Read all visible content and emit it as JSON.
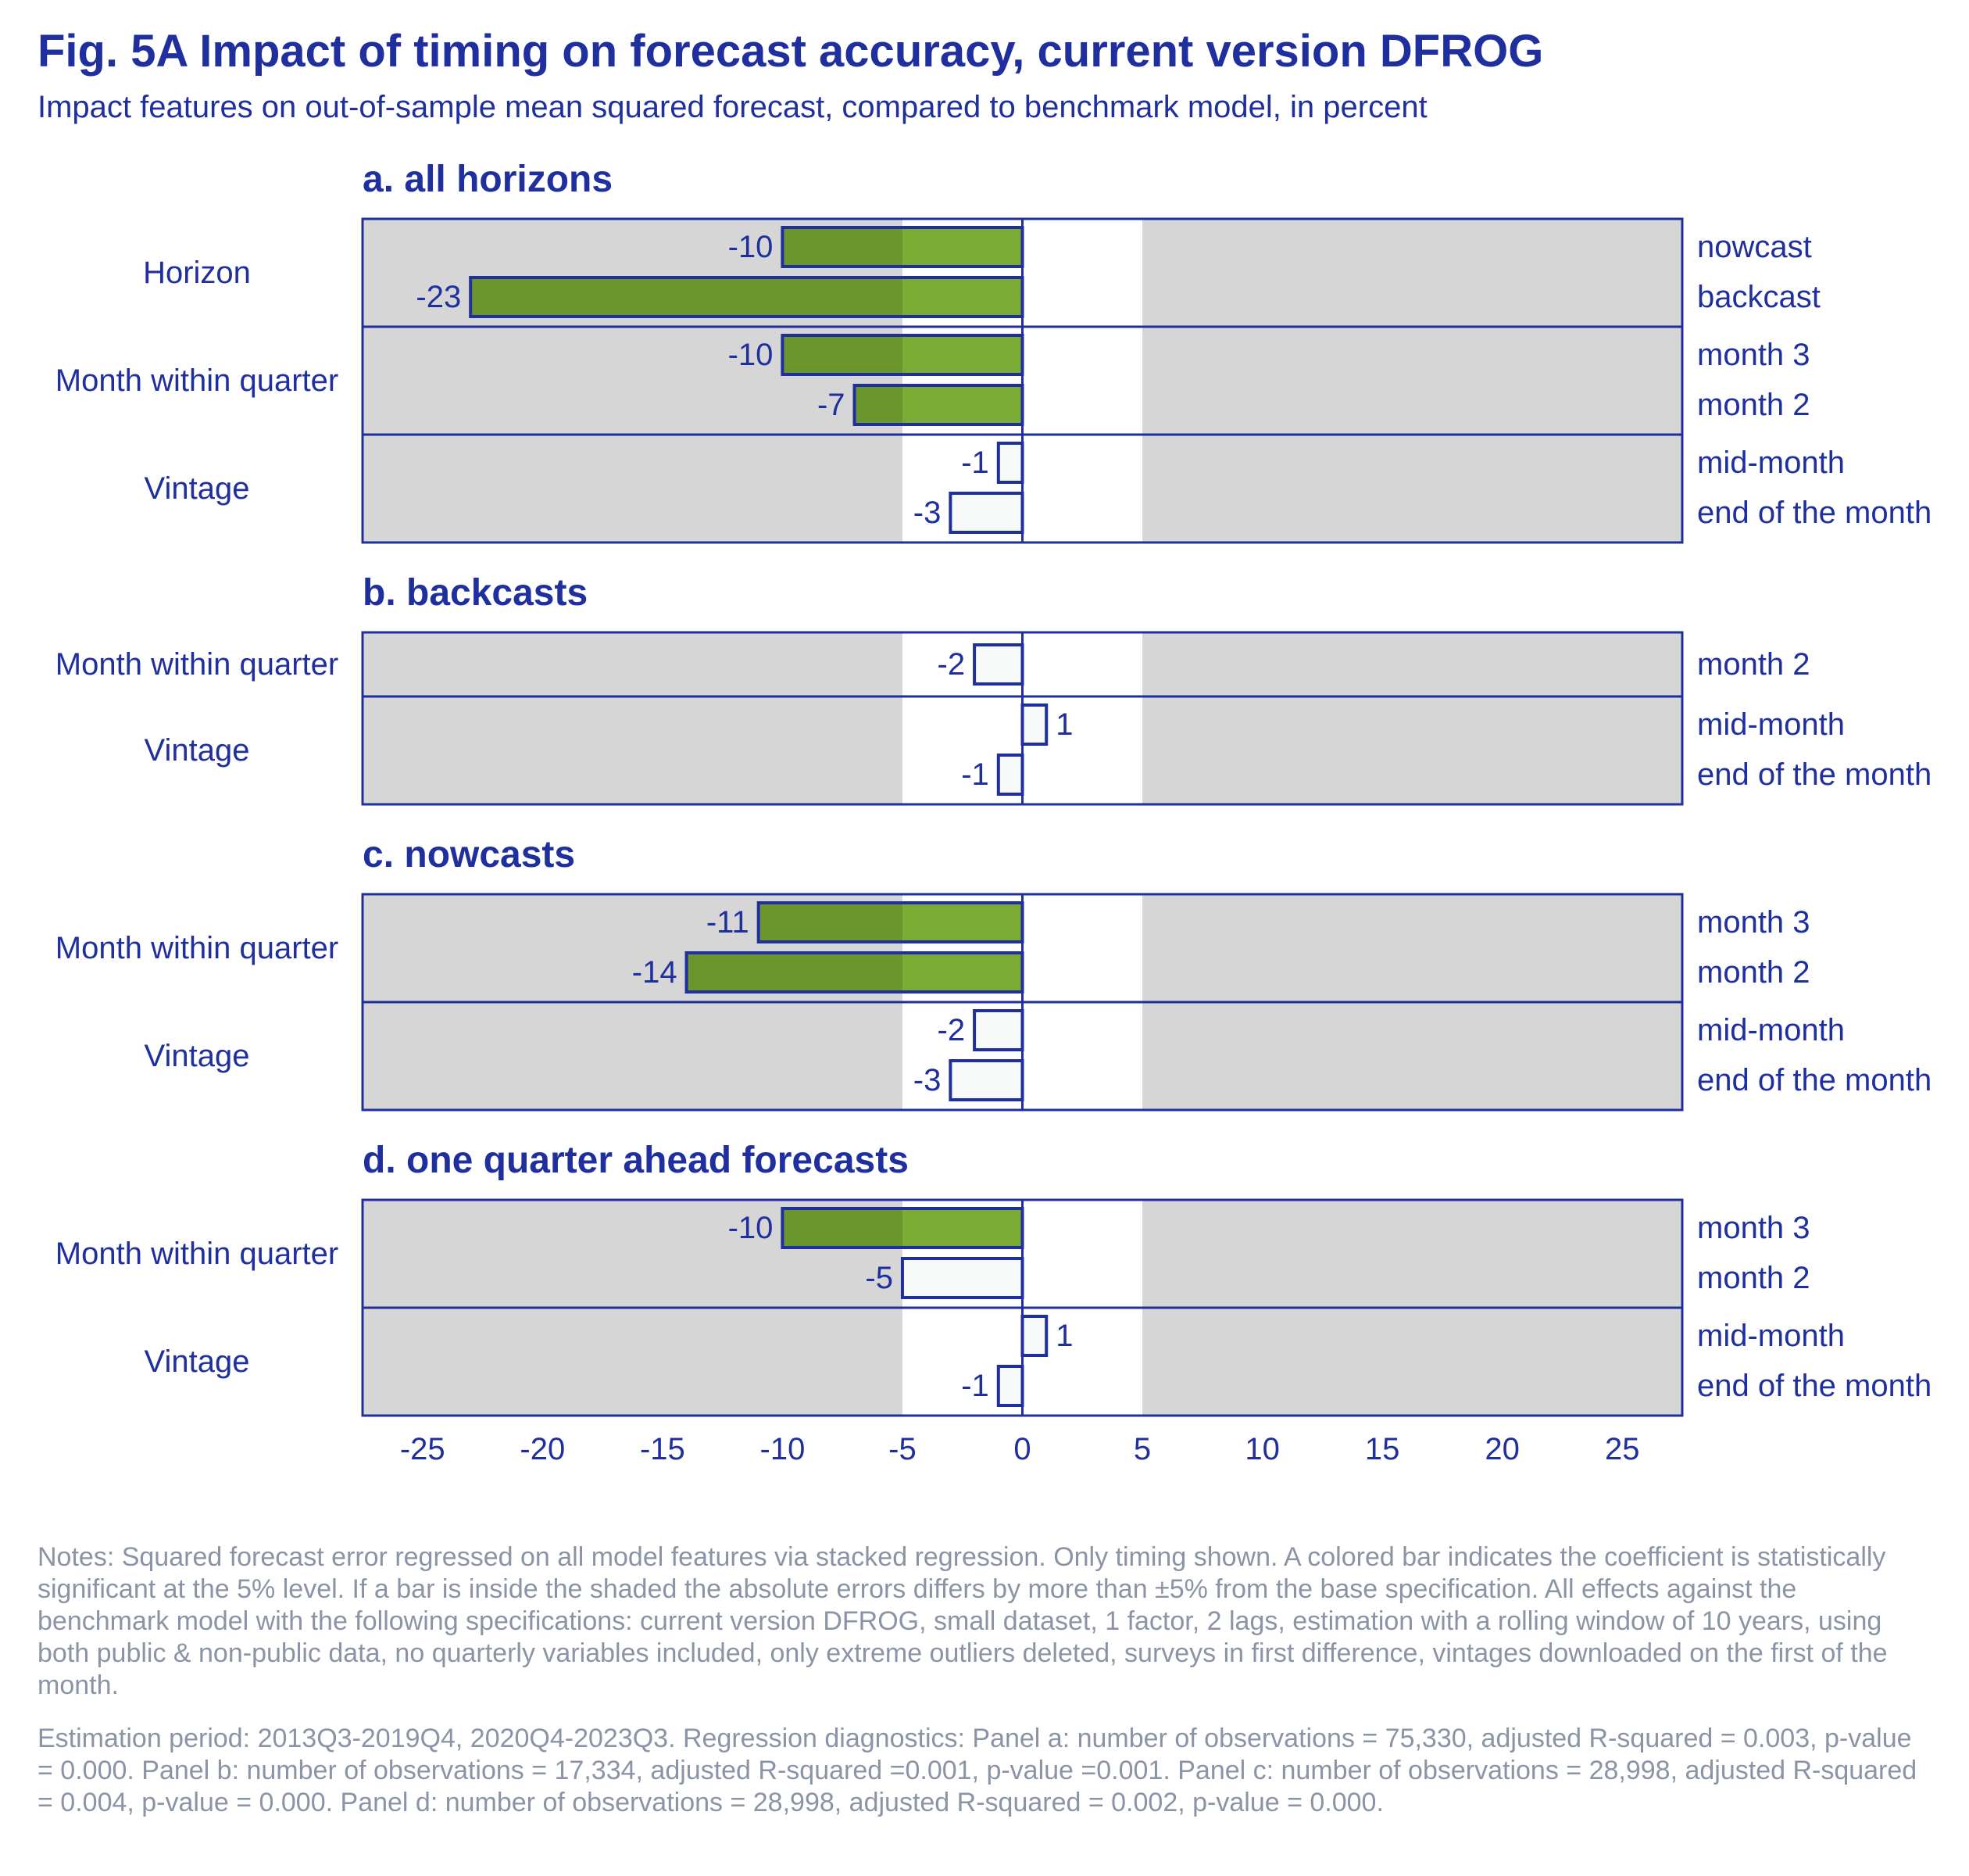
{
  "title": "Fig. 5A Impact of timing on forecast accuracy, current version DFROG",
  "subtitle": "Impact features on out-of-sample mean squared forecast, compared to benchmark model, in percent",
  "notes": "Notes: Squared forecast error regressed on all model features via stacked regression. Only timing shown. A colored bar indicates the coefficient is statistically significant at the 5% level. If a bar is inside the shaded the absolute errors differs by more than ±5% from the base specification. All effects against the benchmark model with the following specifications: current version DFROG, small dataset, 1 factor, 2 lags, estimation with a rolling window of 10 years, using both public & non-public data, no quarterly variables included, only extreme outliers deleted, surveys in first difference, vintages downloaded on the first of the month.",
  "notes_estimation": "Estimation period: 2013Q3-2019Q4, 2020Q4-2023Q3. Regression diagnostics: Panel a: number of observations = 75,330, adjusted R-squared = 0.003, p-value = 0.000. Panel b: number of observations = 17,334, adjusted R-squared =0.001, p-value =0.001. Panel c: number of observations = 28,998, adjusted R-squared = 0.004, p-value = 0.000. Panel d: number of observations = 28,998, adjusted R-squared = 0.002, p-value = 0.000.",
  "colors": {
    "text": "#1f2f9e",
    "outline": "#1f2f9e",
    "shade": "#d6d6d6",
    "significant_bar": "#7aab35",
    "insignificant_bar": "#f7f8f8",
    "notes": "#8a94a6"
  },
  "chart_data": {
    "type": "bar",
    "orientation": "horizontal",
    "xlim": [
      -27.5,
      27.5
    ],
    "xticks": [
      -25,
      -20,
      -15,
      -10,
      -5,
      0,
      5,
      10,
      15,
      20,
      25
    ],
    "unshaded_band": [
      -5,
      5
    ],
    "panels": [
      {
        "title": "a. all horizons",
        "groups": [
          {
            "label": "Horizon",
            "bars": [
              {
                "category": "nowcast",
                "value": -10,
                "significant": true
              },
              {
                "category": "backcast",
                "value": -23,
                "significant": true
              }
            ]
          },
          {
            "label": "Month within quarter",
            "bars": [
              {
                "category": "month 3",
                "value": -10,
                "significant": true
              },
              {
                "category": "month 2",
                "value": -7,
                "significant": true
              }
            ]
          },
          {
            "label": "Vintage",
            "bars": [
              {
                "category": "mid-month",
                "value": -1,
                "significant": false
              },
              {
                "category": "end of the month",
                "value": -3,
                "significant": false
              }
            ]
          }
        ]
      },
      {
        "title": "b. backcasts",
        "groups": [
          {
            "label": "Month within quarter",
            "bars": [
              {
                "category": "month 2",
                "value": -2,
                "significant": false
              }
            ]
          },
          {
            "label": "Vintage",
            "bars": [
              {
                "category": "mid-month",
                "value": 1,
                "significant": false
              },
              {
                "category": "end of the month",
                "value": -1,
                "significant": false
              }
            ]
          }
        ]
      },
      {
        "title": "c. nowcasts",
        "groups": [
          {
            "label": "Month within quarter",
            "bars": [
              {
                "category": "month 3",
                "value": -11,
                "significant": true
              },
              {
                "category": "month 2",
                "value": -14,
                "significant": true
              }
            ]
          },
          {
            "label": "Vintage",
            "bars": [
              {
                "category": "mid-month",
                "value": -2,
                "significant": false
              },
              {
                "category": "end of the month",
                "value": -3,
                "significant": false
              }
            ]
          }
        ]
      },
      {
        "title": "d. one quarter ahead forecasts",
        "groups": [
          {
            "label": "Month within quarter",
            "bars": [
              {
                "category": "month 3",
                "value": -10,
                "significant": true
              },
              {
                "category": "month 2",
                "value": -5,
                "significant": false
              }
            ]
          },
          {
            "label": "Vintage",
            "bars": [
              {
                "category": "mid-month",
                "value": 1,
                "significant": false
              },
              {
                "category": "end of the month",
                "value": -1,
                "significant": false
              }
            ]
          }
        ]
      }
    ]
  }
}
